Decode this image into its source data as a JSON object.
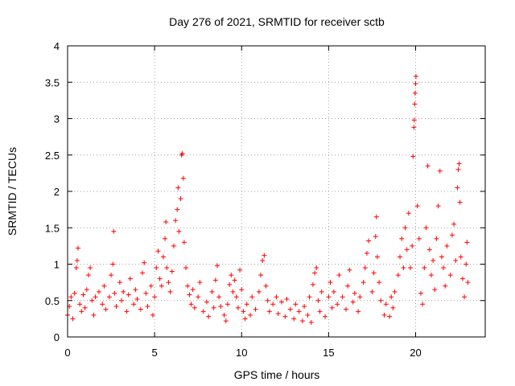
{
  "chart_data": {
    "type": "scatter",
    "title": "Day 276 of 2021, SRMTID for receiver sctb",
    "xlabel": "GPS time / hours",
    "ylabel": "SRMTID / TECUs",
    "xlim": [
      0,
      24
    ],
    "ylim": [
      0,
      4
    ],
    "xticks": [
      0,
      5,
      10,
      15,
      20
    ],
    "yticks": [
      0,
      0.5,
      1,
      1.5,
      2,
      2.5,
      3,
      3.5,
      4
    ],
    "xtick_labels": [
      "0",
      "5",
      "10",
      "15",
      "20"
    ],
    "ytick_labels": [
      "0",
      "0.5",
      "1",
      "1.5",
      "2",
      "2.5",
      "3",
      "3.5",
      "4"
    ],
    "grid": true,
    "marker": "+",
    "color": "#ff0000",
    "series": [
      {
        "name": "SRMTID",
        "points": [
          [
            0.0,
            0.3
          ],
          [
            0.1,
            0.42
          ],
          [
            0.2,
            0.55
          ],
          [
            0.3,
            0.25
          ],
          [
            0.4,
            0.6
          ],
          [
            0.5,
            0.95
          ],
          [
            0.55,
            1.05
          ],
          [
            0.6,
            1.22
          ],
          [
            0.7,
            0.45
          ],
          [
            0.8,
            0.35
          ],
          [
            0.9,
            0.58
          ],
          [
            1.0,
            0.4
          ],
          [
            1.1,
            0.65
          ],
          [
            1.2,
            0.85
          ],
          [
            1.3,
            0.95
          ],
          [
            1.4,
            0.5
          ],
          [
            1.5,
            0.3
          ],
          [
            1.6,
            0.55
          ],
          [
            1.8,
            0.62
          ],
          [
            2.0,
            0.45
          ],
          [
            2.1,
            0.7
          ],
          [
            2.2,
            0.38
          ],
          [
            2.4,
            0.55
          ],
          [
            2.5,
            0.85
          ],
          [
            2.6,
            1.0
          ],
          [
            2.65,
            1.45
          ],
          [
            2.7,
            0.6
          ],
          [
            2.8,
            0.42
          ],
          [
            3.0,
            0.75
          ],
          [
            3.1,
            0.5
          ],
          [
            3.2,
            0.62
          ],
          [
            3.4,
            0.35
          ],
          [
            3.5,
            0.58
          ],
          [
            3.6,
            0.8
          ],
          [
            3.8,
            0.45
          ],
          [
            3.9,
            0.65
          ],
          [
            4.0,
            0.52
          ],
          [
            4.2,
            0.38
          ],
          [
            4.3,
            0.88
          ],
          [
            4.4,
            1.02
          ],
          [
            4.5,
            0.6
          ],
          [
            4.6,
            0.42
          ],
          [
            4.8,
            0.7
          ],
          [
            4.9,
            0.3
          ],
          [
            5.0,
            0.55
          ],
          [
            5.1,
            0.95
          ],
          [
            5.2,
            1.18
          ],
          [
            5.3,
            0.8
          ],
          [
            5.4,
            0.7
          ],
          [
            5.5,
            1.1
          ],
          [
            5.6,
            1.35
          ],
          [
            5.65,
            1.58
          ],
          [
            5.7,
            0.95
          ],
          [
            5.8,
            0.75
          ],
          [
            5.9,
            0.62
          ],
          [
            6.0,
            0.9
          ],
          [
            6.1,
            1.25
          ],
          [
            6.2,
            1.6
          ],
          [
            6.3,
            1.75
          ],
          [
            6.35,
            2.05
          ],
          [
            6.4,
            1.45
          ],
          [
            6.5,
            1.9
          ],
          [
            6.55,
            2.5
          ],
          [
            6.6,
            2.52
          ],
          [
            6.65,
            2.18
          ],
          [
            6.7,
            1.3
          ],
          [
            6.8,
            0.95
          ],
          [
            6.9,
            0.7
          ],
          [
            7.0,
            0.58
          ],
          [
            7.1,
            0.45
          ],
          [
            7.2,
            0.65
          ],
          [
            7.3,
            0.4
          ],
          [
            7.5,
            0.55
          ],
          [
            7.6,
            0.75
          ],
          [
            7.8,
            0.35
          ],
          [
            8.0,
            0.48
          ],
          [
            8.1,
            0.28
          ],
          [
            8.3,
            0.62
          ],
          [
            8.4,
            0.4
          ],
          [
            8.5,
            0.78
          ],
          [
            8.6,
            0.98
          ],
          [
            8.7,
            0.55
          ],
          [
            8.8,
            0.42
          ],
          [
            9.0,
            0.3
          ],
          [
            9.1,
            0.22
          ],
          [
            9.2,
            0.45
          ],
          [
            9.3,
            0.72
          ],
          [
            9.4,
            0.85
          ],
          [
            9.5,
            0.62
          ],
          [
            9.6,
            0.78
          ],
          [
            9.7,
            0.55
          ],
          [
            9.8,
            0.4
          ],
          [
            9.9,
            0.92
          ],
          [
            10.0,
            0.65
          ],
          [
            10.1,
            0.35
          ],
          [
            10.2,
            0.25
          ],
          [
            10.3,
            0.45
          ],
          [
            10.5,
            0.3
          ],
          [
            10.6,
            0.55
          ],
          [
            10.8,
            0.38
          ],
          [
            11.0,
            0.62
          ],
          [
            11.1,
            0.85
          ],
          [
            11.2,
            1.05
          ],
          [
            11.3,
            1.12
          ],
          [
            11.4,
            0.7
          ],
          [
            11.5,
            0.5
          ],
          [
            11.6,
            0.35
          ],
          [
            11.8,
            0.45
          ],
          [
            12.0,
            0.55
          ],
          [
            12.1,
            0.32
          ],
          [
            12.3,
            0.48
          ],
          [
            12.5,
            0.28
          ],
          [
            12.6,
            0.52
          ],
          [
            12.8,
            0.38
          ],
          [
            13.0,
            0.25
          ],
          [
            13.1,
            0.45
          ],
          [
            13.3,
            0.35
          ],
          [
            13.5,
            0.22
          ],
          [
            13.6,
            0.42
          ],
          [
            13.8,
            0.3
          ],
          [
            13.9,
            0.55
          ],
          [
            14.0,
            0.2
          ],
          [
            14.1,
            0.72
          ],
          [
            14.2,
            0.88
          ],
          [
            14.3,
            0.95
          ],
          [
            14.4,
            0.5
          ],
          [
            14.5,
            0.35
          ],
          [
            14.6,
            0.62
          ],
          [
            14.8,
            0.28
          ],
          [
            15.0,
            0.55
          ],
          [
            15.1,
            0.75
          ],
          [
            15.2,
            0.4
          ],
          [
            15.3,
            0.62
          ],
          [
            15.5,
            0.45
          ],
          [
            15.6,
            0.85
          ],
          [
            15.8,
            0.55
          ],
          [
            16.0,
            0.38
          ],
          [
            16.1,
            0.7
          ],
          [
            16.2,
            0.92
          ],
          [
            16.4,
            0.48
          ],
          [
            16.5,
            0.6
          ],
          [
            16.7,
            0.35
          ],
          [
            16.8,
            0.55
          ],
          [
            17.0,
            0.75
          ],
          [
            17.1,
            0.95
          ],
          [
            17.2,
            1.15
          ],
          [
            17.3,
            1.32
          ],
          [
            17.5,
            0.62
          ],
          [
            17.6,
            0.88
          ],
          [
            17.7,
            1.38
          ],
          [
            17.75,
            1.65
          ],
          [
            17.8,
            1.1
          ],
          [
            17.9,
            0.75
          ],
          [
            18.0,
            0.5
          ],
          [
            18.2,
            0.3
          ],
          [
            18.3,
            0.45
          ],
          [
            18.5,
            0.28
          ],
          [
            18.6,
            0.55
          ],
          [
            18.7,
            0.4
          ],
          [
            18.8,
            0.62
          ],
          [
            19.0,
            0.85
          ],
          [
            19.1,
            1.1
          ],
          [
            19.2,
            1.35
          ],
          [
            19.3,
            0.95
          ],
          [
            19.4,
            1.5
          ],
          [
            19.5,
            1.2
          ],
          [
            19.6,
            1.7
          ],
          [
            19.7,
            0.95
          ],
          [
            19.8,
            1.25
          ],
          [
            19.85,
            2.48
          ],
          [
            19.9,
            2.88
          ],
          [
            19.92,
            2.98
          ],
          [
            19.95,
            3.2
          ],
          [
            19.97,
            3.35
          ],
          [
            20.0,
            3.48
          ],
          [
            20.02,
            3.58
          ],
          [
            20.1,
            1.8
          ],
          [
            20.2,
            1.35
          ],
          [
            20.3,
            0.6
          ],
          [
            20.4,
            0.45
          ],
          [
            20.5,
            0.95
          ],
          [
            20.6,
            1.5
          ],
          [
            20.7,
            2.35
          ],
          [
            20.8,
            1.2
          ],
          [
            20.9,
            0.85
          ],
          [
            21.0,
            1.05
          ],
          [
            21.1,
            0.65
          ],
          [
            21.2,
            1.35
          ],
          [
            21.3,
            1.8
          ],
          [
            21.4,
            2.28
          ],
          [
            21.5,
            1.1
          ],
          [
            21.6,
            0.95
          ],
          [
            21.7,
            0.7
          ],
          [
            21.8,
            1.25
          ],
          [
            22.0,
            0.85
          ],
          [
            22.1,
            1.4
          ],
          [
            22.2,
            1.55
          ],
          [
            22.3,
            1.05
          ],
          [
            22.4,
            2.05
          ],
          [
            22.45,
            2.3
          ],
          [
            22.5,
            2.38
          ],
          [
            22.55,
            1.85
          ],
          [
            22.6,
            1.1
          ],
          [
            22.7,
            0.8
          ],
          [
            22.8,
            0.55
          ],
          [
            22.9,
            1.0
          ],
          [
            22.95,
            1.3
          ],
          [
            23.0,
            0.75
          ]
        ]
      }
    ]
  }
}
